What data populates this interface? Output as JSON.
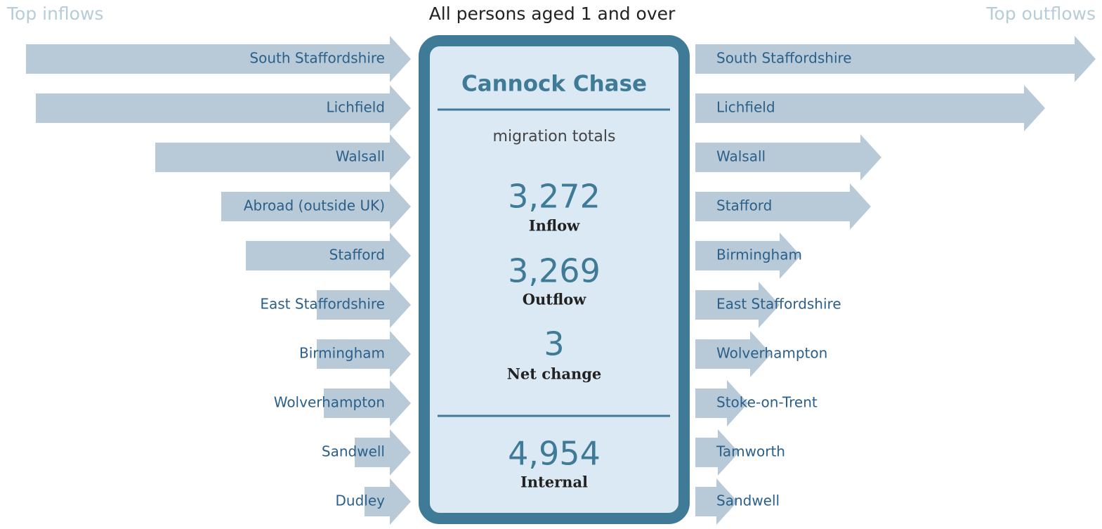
{
  "header": {
    "left": "Top inflows",
    "title": "All persons aged 1 and over",
    "right": "Top outflows"
  },
  "inflows": [
    {
      "name": "South Staffordshire",
      "value": 548
    },
    {
      "name": "Lichfield",
      "value": 534
    },
    {
      "name": "Walsall",
      "value": 364
    },
    {
      "name": "Abroad (outside UK)",
      "value": 270
    },
    {
      "name": "Stafford",
      "value": 235
    },
    {
      "name": "East Staffordshire",
      "value": 134
    },
    {
      "name": "Birmingham",
      "value": 134
    },
    {
      "name": "Wolverhampton",
      "value": 124
    },
    {
      "name": "Sandwell",
      "value": 80
    },
    {
      "name": "Dudley",
      "value": 66
    }
  ],
  "outflows": [
    {
      "name": "South Staffordshire",
      "value": 570
    },
    {
      "name": "Lichfield",
      "value": 498
    },
    {
      "name": "Walsall",
      "value": 265
    },
    {
      "name": "Stafford",
      "value": 250
    },
    {
      "name": "Birmingham",
      "value": 150
    },
    {
      "name": "East Staffordshire",
      "value": 120
    },
    {
      "name": "Wolverhampton",
      "value": 108
    },
    {
      "name": "Stoke-on-Trent",
      "value": 75
    },
    {
      "name": "Tamworth",
      "value": 62
    },
    {
      "name": "Sandwell",
      "value": 60
    }
  ],
  "panel": {
    "title": "Cannock Chase",
    "subtitle": "migration totals",
    "totals": [
      {
        "value": "3,272",
        "label": "Inflow"
      },
      {
        "value": "3,269",
        "label": "Outflow"
      },
      {
        "value": "3",
        "label": "Net change"
      }
    ],
    "internal": {
      "value": "4,954",
      "label": "Internal"
    }
  }
}
